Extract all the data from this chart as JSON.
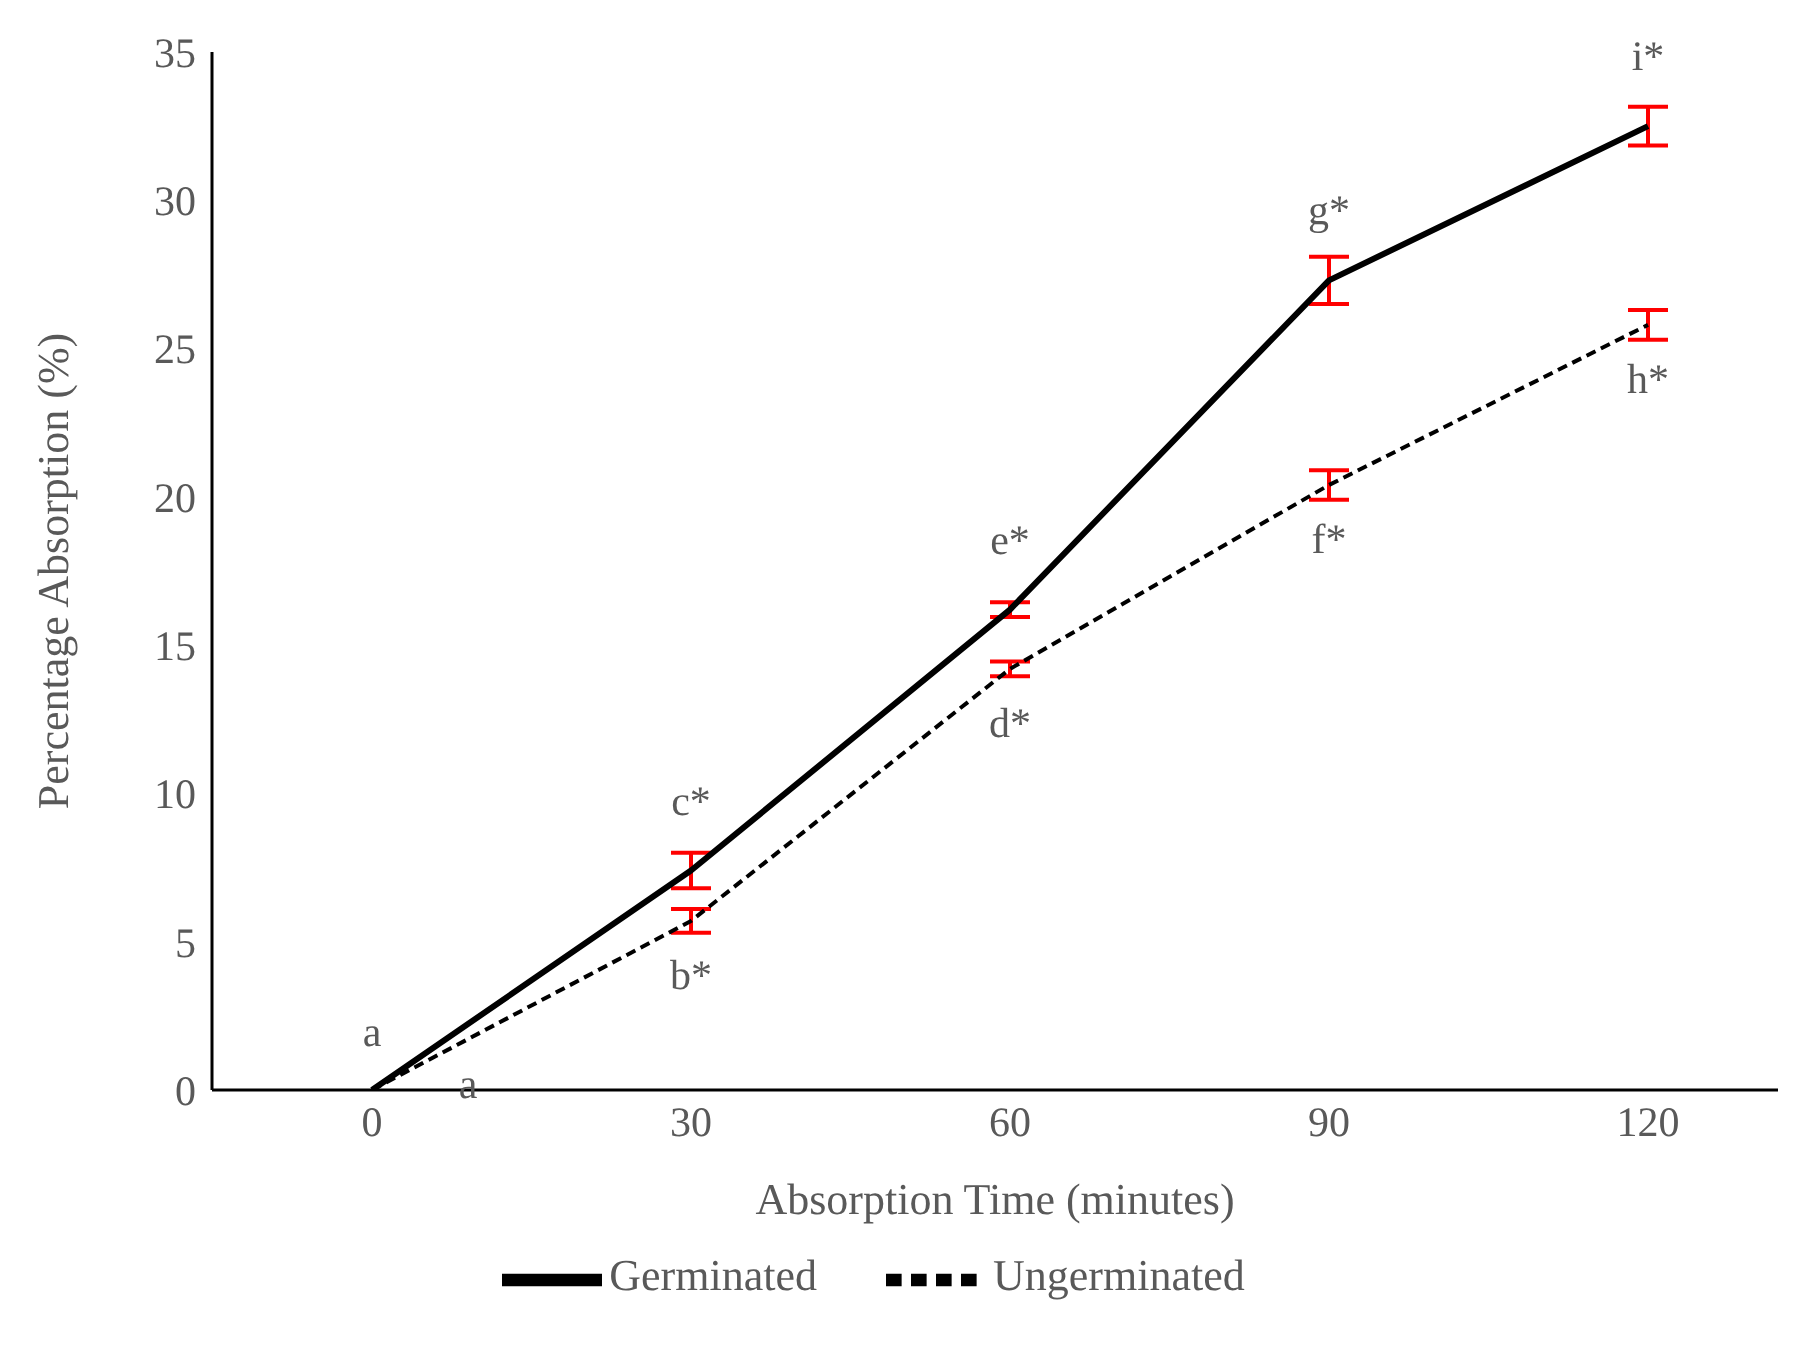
{
  "chart_data": {
    "type": "line",
    "xlabel": "Absorption Time (minutes)",
    "ylabel": "Percentage Absorption (%)",
    "categories": [
      "0",
      "30",
      "60",
      "90",
      "120"
    ],
    "series": [
      {
        "name": "Germinated",
        "color": "#000000",
        "line_style": "solid",
        "values": [
          0,
          7.4,
          16.2,
          27.3,
          32.5
        ],
        "errors": [
          null,
          0.6,
          0.25,
          0.8,
          0.65
        ]
      },
      {
        "name": "Ungerminated",
        "color": "#000000",
        "line_style": "dashed",
        "values": [
          0,
          5.7,
          14.2,
          20.4,
          25.8
        ],
        "errors": [
          null,
          0.4,
          0.25,
          0.5,
          0.5
        ]
      }
    ],
    "ylim": [
      0,
      35
    ],
    "yticks": [
      0,
      5,
      10,
      15,
      20,
      25,
      30,
      35
    ],
    "grid": false,
    "legend": "bottom",
    "marker": "none",
    "annotations": [
      {
        "text": "a",
        "x": "0",
        "y": 0
      },
      {
        "text": "a",
        "x": "0",
        "y": 0
      },
      {
        "text": "c*",
        "x": "30",
        "y": 7.4
      },
      {
        "text": "b*",
        "x": "30",
        "y": 5.7
      },
      {
        "text": "e*",
        "x": "60",
        "y": 16.2
      },
      {
        "text": "d*",
        "x": "60",
        "y": 14.2
      },
      {
        "text": "g*",
        "x": "90",
        "y": 27.3
      },
      {
        "text": "f*",
        "x": "90",
        "y": 20.4
      },
      {
        "text": "i*",
        "x": "120",
        "y": 32.5
      },
      {
        "text": "h*",
        "x": "120",
        "y": 25.8
      }
    ]
  }
}
